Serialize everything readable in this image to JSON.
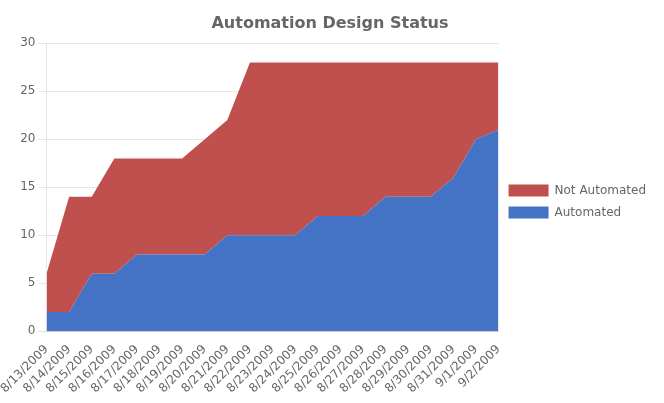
{
  "chart_data": {
    "type": "area",
    "title": "Automation Design Status",
    "categories": [
      "8/13/2009",
      "8/14/2009",
      "8/15/2009",
      "8/16/2009",
      "8/17/2009",
      "8/18/2009",
      "8/19/2009",
      "8/20/2009",
      "8/21/2009",
      "8/22/2009",
      "8/23/2009",
      "8/24/2009",
      "8/25/2009",
      "8/26/2009",
      "8/27/2009",
      "8/28/2009",
      "8/29/2009",
      "8/30/2009",
      "8/31/2009",
      "9/1/2009",
      "9/2/2009"
    ],
    "series": [
      {
        "name": "Automated",
        "color": "#4472C4",
        "values": [
          2,
          2,
          6,
          6,
          8,
          8,
          8,
          8,
          10,
          10,
          10,
          10,
          12,
          12,
          12,
          14,
          14,
          14,
          16,
          20,
          21
        ]
      },
      {
        "name": "Not Automated",
        "color": "#C0504D",
        "values": [
          4,
          12,
          8,
          12,
          10,
          10,
          10,
          12,
          12,
          18,
          18,
          18,
          16,
          16,
          16,
          14,
          14,
          14,
          12,
          8,
          7
        ]
      }
    ],
    "stacked": true,
    "ylim": [
      0,
      30
    ],
    "yticks": [
      0,
      5,
      10,
      15,
      20,
      25,
      30
    ],
    "grid": "y",
    "legend": "right"
  }
}
